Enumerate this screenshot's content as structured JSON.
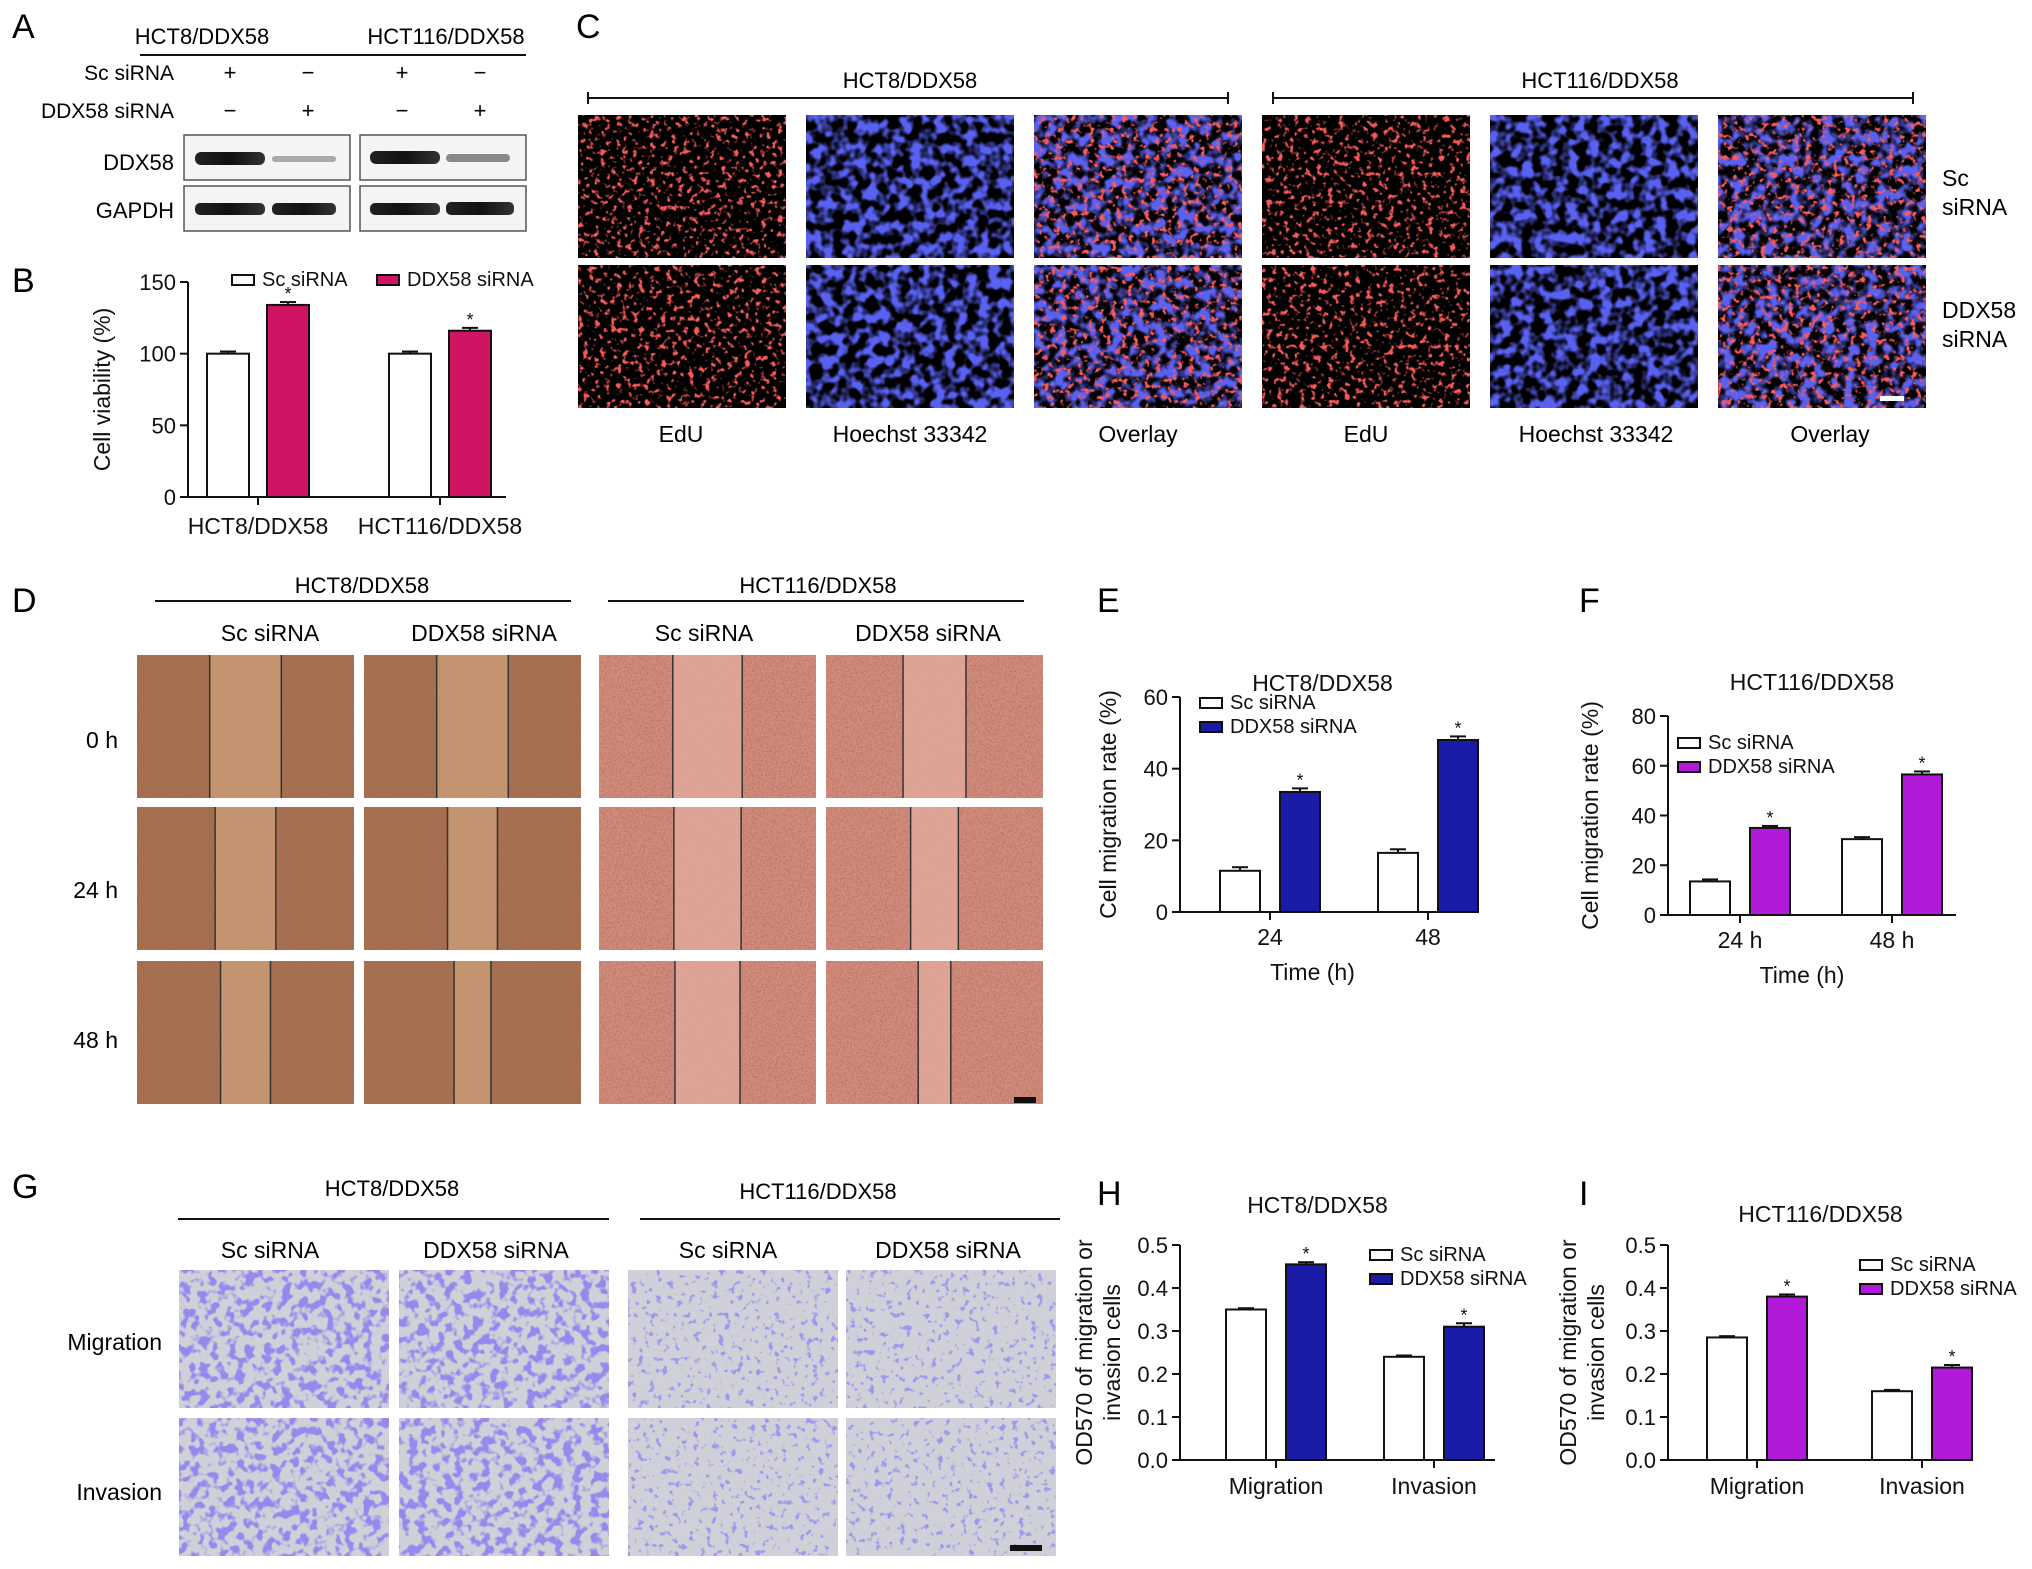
{
  "colors": {
    "white_bar": "#ffffff",
    "pink": "#d01464",
    "navy": "#1a1ca8",
    "purple": "#b01ad8",
    "brown": "#b87e56",
    "salmon": "#e09a86"
  },
  "panel_A": {
    "letter": "A",
    "col_headers": [
      "HCT8/DDX58",
      "HCT116/DDX58"
    ],
    "row_labels": [
      "Sc siRNA",
      "DDX58 siRNA"
    ],
    "sc_signs": [
      "+",
      "−",
      "+",
      "−"
    ],
    "ddx_signs": [
      "−",
      "+",
      "−",
      "+"
    ],
    "blot_labels": [
      "DDX58",
      "GAPDH"
    ]
  },
  "panel_C": {
    "letter": "C",
    "group_titles": [
      "HCT8/DDX58",
      "HCT116/DDX58"
    ],
    "col_labels": [
      "EdU",
      "Hoechst 33342",
      "Overlay",
      "EdU",
      "Hoechst 33342",
      "Overlay"
    ],
    "row_labels": [
      [
        "Sc",
        "siRNA"
      ],
      [
        "DDX58",
        "siRNA"
      ]
    ]
  },
  "panel_D": {
    "letter": "D",
    "group_titles": [
      "HCT8/DDX58",
      "HCT116/DDX58"
    ],
    "col_labels": [
      "Sc siRNA",
      "DDX58 siRNA",
      "Sc siRNA",
      "DDX58 siRNA"
    ],
    "row_labels": [
      "0 h",
      "24 h",
      "48 h"
    ]
  },
  "panel_G": {
    "letter": "G",
    "group_titles": [
      "HCT8/DDX58",
      "HCT116/DDX58"
    ],
    "col_labels": [
      "Sc siRNA",
      "DDX58 siRNA",
      "Sc siRNA",
      "DDX58 siRNA"
    ],
    "row_labels": [
      "Migration",
      "Invasion"
    ]
  },
  "chart_data": [
    {
      "panel": "B",
      "type": "bar",
      "title": "",
      "xlabel": "",
      "ylabel": "Cell viability (%)",
      "categories": [
        "HCT8/DDX58",
        "HCT116/DDX58"
      ],
      "ylim": [
        0,
        150
      ],
      "yticks": [
        0,
        50,
        100,
        150
      ],
      "legend_position": "top",
      "series": [
        {
          "name": "Sc siRNA",
          "values": [
            100,
            100
          ],
          "errors": [
            1.5,
            1.5
          ],
          "color": "#ffffff",
          "sig": [
            "",
            ""
          ]
        },
        {
          "name": "DDX58 siRNA",
          "values": [
            134,
            116
          ],
          "errors": [
            2,
            2
          ],
          "color": "#d01464",
          "sig": [
            "*",
            "*"
          ]
        }
      ]
    },
    {
      "panel": "E",
      "type": "bar",
      "title": "HCT8/DDX58",
      "xlabel": "Time (h)",
      "ylabel": "Cell migration rate (%)",
      "categories": [
        "24",
        "48"
      ],
      "ylim": [
        0,
        60
      ],
      "yticks": [
        0,
        20,
        40,
        60
      ],
      "legend_position": "top-left",
      "series": [
        {
          "name": "Sc siRNA",
          "values": [
            11.5,
            16.5
          ],
          "errors": [
            1,
            1
          ],
          "color": "#ffffff",
          "sig": [
            "",
            ""
          ]
        },
        {
          "name": "DDX58 siRNA",
          "values": [
            33.5,
            48
          ],
          "errors": [
            1,
            1
          ],
          "color": "#1a1ca8",
          "sig": [
            "*",
            "*"
          ]
        }
      ]
    },
    {
      "panel": "F",
      "type": "bar",
      "title": "HCT116/DDX58",
      "xlabel": "Time (h)",
      "ylabel": "Cell migration rate (%)",
      "categories": [
        "24 h",
        "48 h"
      ],
      "ylim": [
        0,
        80
      ],
      "yticks": [
        0,
        20,
        40,
        60,
        80
      ],
      "legend_position": "top-left",
      "series": [
        {
          "name": "Sc siRNA",
          "values": [
            13.5,
            30.5
          ],
          "errors": [
            0.8,
            0.8
          ],
          "color": "#ffffff",
          "sig": [
            "",
            ""
          ]
        },
        {
          "name": "DDX58 siRNA",
          "values": [
            35,
            56.5
          ],
          "errors": [
            0.8,
            1.2
          ],
          "color": "#b01ad8",
          "sig": [
            "*",
            "*"
          ]
        }
      ]
    },
    {
      "panel": "H",
      "type": "bar",
      "title": "HCT8/DDX58",
      "xlabel": "",
      "ylabel": [
        "OD570 of migration or",
        "invasion cells"
      ],
      "categories": [
        "Migration",
        "Invasion"
      ],
      "ylim": [
        0,
        0.5
      ],
      "yticks": [
        0.0,
        0.1,
        0.2,
        0.3,
        0.4,
        0.5
      ],
      "legend_position": "top-right",
      "series": [
        {
          "name": "Sc siRNA",
          "values": [
            0.35,
            0.24
          ],
          "errors": [
            0.003,
            0.003
          ],
          "color": "#ffffff",
          "sig": [
            "",
            ""
          ]
        },
        {
          "name": "DDX58 siRNA",
          "values": [
            0.455,
            0.31
          ],
          "errors": [
            0.005,
            0.008
          ],
          "color": "#1a1ca8",
          "sig": [
            "*",
            "*"
          ]
        }
      ]
    },
    {
      "panel": "I",
      "type": "bar",
      "title": "HCT116/DDX58",
      "xlabel": "",
      "ylabel": [
        "OD570 of migration or",
        "invasion cells"
      ],
      "categories": [
        "Migration",
        "Invasion"
      ],
      "ylim": [
        0,
        0.5
      ],
      "yticks": [
        0.0,
        0.1,
        0.2,
        0.3,
        0.4,
        0.5
      ],
      "legend_position": "top-right",
      "series": [
        {
          "name": "Sc siRNA",
          "values": [
            0.285,
            0.16
          ],
          "errors": [
            0.003,
            0.003
          ],
          "color": "#ffffff",
          "sig": [
            "",
            ""
          ]
        },
        {
          "name": "DDX58 siRNA",
          "values": [
            0.38,
            0.215
          ],
          "errors": [
            0.005,
            0.006
          ],
          "color": "#b01ad8",
          "sig": [
            "*",
            "*"
          ]
        }
      ]
    }
  ]
}
